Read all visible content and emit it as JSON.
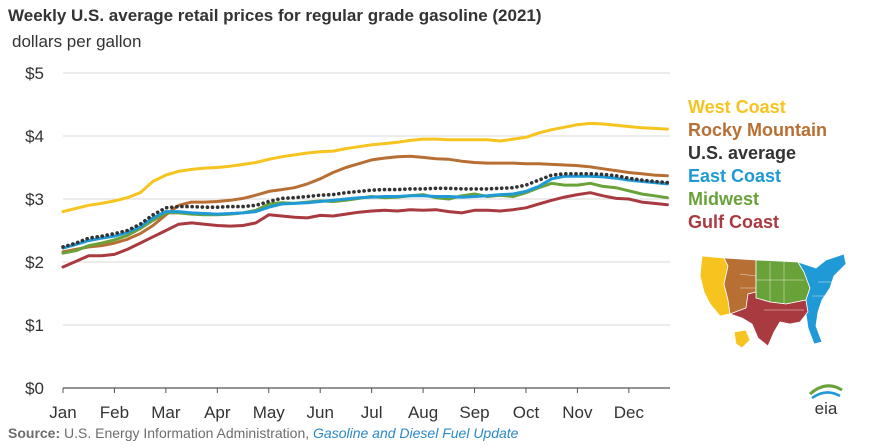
{
  "header": {
    "title": "Weekly U.S. average retail prices for regular grade gasoline (2021)",
    "subtitle": "dollars per gallon"
  },
  "chart_data": {
    "type": "line",
    "title": "Weekly U.S. average retail prices for regular grade gasoline (2021)",
    "ylabel": "dollars per gallon",
    "xlabel": "",
    "ylim": [
      0,
      5
    ],
    "y_ticks": [
      0,
      1,
      2,
      3,
      4,
      5
    ],
    "y_tick_labels": [
      "$0",
      "$1",
      "$2",
      "$3",
      "$4",
      "$5"
    ],
    "x_range_months": [
      0,
      11.8
    ],
    "x_tick_values": [
      0,
      1,
      2,
      3,
      4,
      5,
      6,
      7,
      8,
      9,
      10,
      11
    ],
    "x_tick_labels": [
      "Jan",
      "Feb",
      "Mar",
      "Apr",
      "May",
      "Jun",
      "Jul",
      "Aug",
      "Sep",
      "Oct",
      "Nov",
      "Dec"
    ],
    "grid": true,
    "legend_position": "right",
    "x": [
      0.0,
      0.25,
      0.5,
      0.75,
      1.0,
      1.25,
      1.5,
      1.75,
      2.0,
      2.25,
      2.5,
      2.75,
      3.0,
      3.25,
      3.5,
      3.75,
      4.0,
      4.25,
      4.5,
      4.75,
      5.0,
      5.25,
      5.5,
      5.75,
      6.0,
      6.25,
      6.5,
      6.75,
      7.0,
      7.25,
      7.5,
      7.75,
      8.0,
      8.25,
      8.5,
      8.75,
      9.0,
      9.25,
      9.5,
      9.75,
      10.0,
      10.25,
      10.5,
      10.75,
      11.0,
      11.25,
      11.5,
      11.75
    ],
    "series": [
      {
        "name": "West Coast",
        "color": "#f7c41f",
        "values": [
          2.8,
          2.85,
          2.9,
          2.93,
          2.97,
          3.02,
          3.1,
          3.28,
          3.38,
          3.44,
          3.47,
          3.49,
          3.5,
          3.52,
          3.55,
          3.58,
          3.63,
          3.67,
          3.7,
          3.73,
          3.75,
          3.76,
          3.8,
          3.83,
          3.86,
          3.88,
          3.9,
          3.93,
          3.95,
          3.95,
          3.94,
          3.94,
          3.94,
          3.94,
          3.92,
          3.95,
          3.98,
          4.05,
          4.1,
          4.14,
          4.18,
          4.2,
          4.19,
          4.17,
          4.15,
          4.13,
          4.12,
          4.11
        ]
      },
      {
        "name": "Rocky Mountain",
        "color": "#b76f34",
        "values": [
          2.16,
          2.2,
          2.24,
          2.26,
          2.3,
          2.36,
          2.45,
          2.58,
          2.75,
          2.9,
          2.95,
          2.95,
          2.96,
          2.98,
          3.01,
          3.06,
          3.12,
          3.15,
          3.18,
          3.24,
          3.32,
          3.42,
          3.5,
          3.56,
          3.62,
          3.65,
          3.67,
          3.68,
          3.66,
          3.64,
          3.63,
          3.6,
          3.58,
          3.57,
          3.57,
          3.57,
          3.56,
          3.56,
          3.55,
          3.54,
          3.53,
          3.51,
          3.48,
          3.45,
          3.42,
          3.4,
          3.38,
          3.37
        ]
      },
      {
        "name": "U.S. average",
        "color": "#333333",
        "values": [
          2.24,
          2.3,
          2.38,
          2.41,
          2.45,
          2.5,
          2.6,
          2.75,
          2.86,
          2.88,
          2.88,
          2.87,
          2.87,
          2.88,
          2.88,
          2.9,
          2.96,
          3.01,
          3.02,
          3.04,
          3.06,
          3.07,
          3.1,
          3.12,
          3.14,
          3.15,
          3.15,
          3.16,
          3.16,
          3.17,
          3.17,
          3.16,
          3.16,
          3.16,
          3.17,
          3.18,
          3.22,
          3.3,
          3.38,
          3.4,
          3.4,
          3.4,
          3.39,
          3.37,
          3.33,
          3.3,
          3.28,
          3.26
        ]
      },
      {
        "name": "East Coast",
        "color": "#1f9ad6",
        "values": [
          2.22,
          2.28,
          2.34,
          2.38,
          2.41,
          2.47,
          2.56,
          2.7,
          2.8,
          2.8,
          2.78,
          2.77,
          2.76,
          2.77,
          2.78,
          2.8,
          2.87,
          2.92,
          2.93,
          2.94,
          2.96,
          2.98,
          3.0,
          3.02,
          3.03,
          3.04,
          3.04,
          3.05,
          3.05,
          3.04,
          3.04,
          3.03,
          3.04,
          3.05,
          3.07,
          3.08,
          3.12,
          3.2,
          3.32,
          3.36,
          3.36,
          3.36,
          3.35,
          3.33,
          3.3,
          3.28,
          3.26,
          3.24
        ]
      },
      {
        "name": "Midwest",
        "color": "#6aa23a",
        "values": [
          2.14,
          2.18,
          2.26,
          2.3,
          2.35,
          2.42,
          2.53,
          2.66,
          2.78,
          2.78,
          2.76,
          2.75,
          2.75,
          2.76,
          2.78,
          2.82,
          2.92,
          2.94,
          2.93,
          2.95,
          2.97,
          2.96,
          2.98,
          3.01,
          3.04,
          3.02,
          3.03,
          3.05,
          3.07,
          3.02,
          3.0,
          3.05,
          3.08,
          3.04,
          3.06,
          3.04,
          3.1,
          3.18,
          3.25,
          3.22,
          3.22,
          3.25,
          3.2,
          3.18,
          3.13,
          3.08,
          3.05,
          3.02
        ]
      },
      {
        "name": "Gulf Coast",
        "color": "#a93b40",
        "values": [
          1.92,
          2.01,
          2.1,
          2.1,
          2.12,
          2.2,
          2.3,
          2.4,
          2.5,
          2.6,
          2.62,
          2.6,
          2.58,
          2.57,
          2.58,
          2.62,
          2.75,
          2.73,
          2.71,
          2.7,
          2.74,
          2.73,
          2.76,
          2.79,
          2.81,
          2.82,
          2.81,
          2.83,
          2.82,
          2.83,
          2.8,
          2.78,
          2.82,
          2.82,
          2.81,
          2.83,
          2.86,
          2.92,
          2.98,
          3.03,
          3.07,
          3.1,
          3.05,
          3.01,
          3.0,
          2.95,
          2.93,
          2.91
        ]
      }
    ]
  },
  "source": {
    "label": "Source:",
    "text": "U.S. Energy Information Administration,",
    "link": "Gasoline and Diesel Fuel Update"
  },
  "logo": {
    "text": "eia"
  }
}
